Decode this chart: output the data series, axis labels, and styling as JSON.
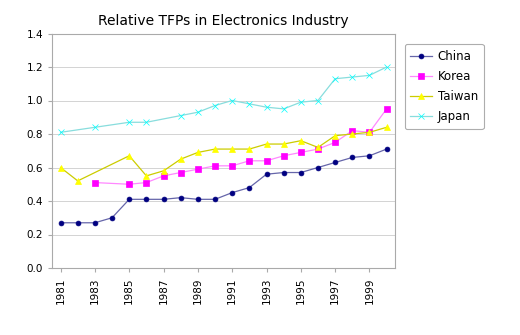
{
  "title": "Relative TFPs in Electronics Industry",
  "years": [
    1981,
    1982,
    1983,
    1984,
    1985,
    1986,
    1987,
    1988,
    1989,
    1990,
    1991,
    1992,
    1993,
    1994,
    1995,
    1996,
    1997,
    1998,
    1999,
    2000
  ],
  "china": [
    0.27,
    0.27,
    0.27,
    0.3,
    0.41,
    0.41,
    0.41,
    0.42,
    0.41,
    0.41,
    0.45,
    0.48,
    0.56,
    0.57,
    0.57,
    0.6,
    0.63,
    0.66,
    0.67,
    0.71
  ],
  "korea": [
    null,
    null,
    0.51,
    null,
    0.5,
    0.51,
    0.55,
    0.57,
    0.59,
    0.61,
    0.61,
    0.64,
    0.64,
    0.67,
    0.69,
    0.71,
    0.75,
    0.82,
    0.81,
    0.95
  ],
  "taiwan": [
    0.6,
    0.52,
    null,
    null,
    0.67,
    0.55,
    0.58,
    0.65,
    0.69,
    0.71,
    0.71,
    0.71,
    0.74,
    0.74,
    0.76,
    0.72,
    0.79,
    0.8,
    0.81,
    0.84
  ],
  "japan": [
    0.81,
    null,
    0.84,
    null,
    0.87,
    0.87,
    null,
    0.91,
    0.93,
    0.97,
    1.0,
    0.98,
    0.96,
    0.95,
    0.99,
    1.0,
    1.13,
    1.14,
    1.15,
    1.2
  ],
  "china_color": "#000080",
  "korea_color": "#FF00FF",
  "taiwan_color": "#FFFF00",
  "japan_color": "#00FFFF",
  "china_line_color": "#6666aa",
  "korea_line_color": "#FF88FF",
  "taiwan_line_color": "#CCCC00",
  "japan_line_color": "#88DDDD",
  "ylim": [
    0.0,
    1.4
  ],
  "yticks": [
    0.0,
    0.2,
    0.4,
    0.6,
    0.8,
    1.0,
    1.2,
    1.4
  ],
  "xtick_years": [
    1981,
    1983,
    1985,
    1987,
    1989,
    1991,
    1993,
    1995,
    1997,
    1999
  ],
  "fig_bg": "#ffffff",
  "plot_bg": "#ffffff",
  "grid_color": "#cccccc",
  "spine_color": "#aaaaaa",
  "title_fontsize": 10,
  "tick_fontsize": 7.5,
  "legend_fontsize": 8.5
}
